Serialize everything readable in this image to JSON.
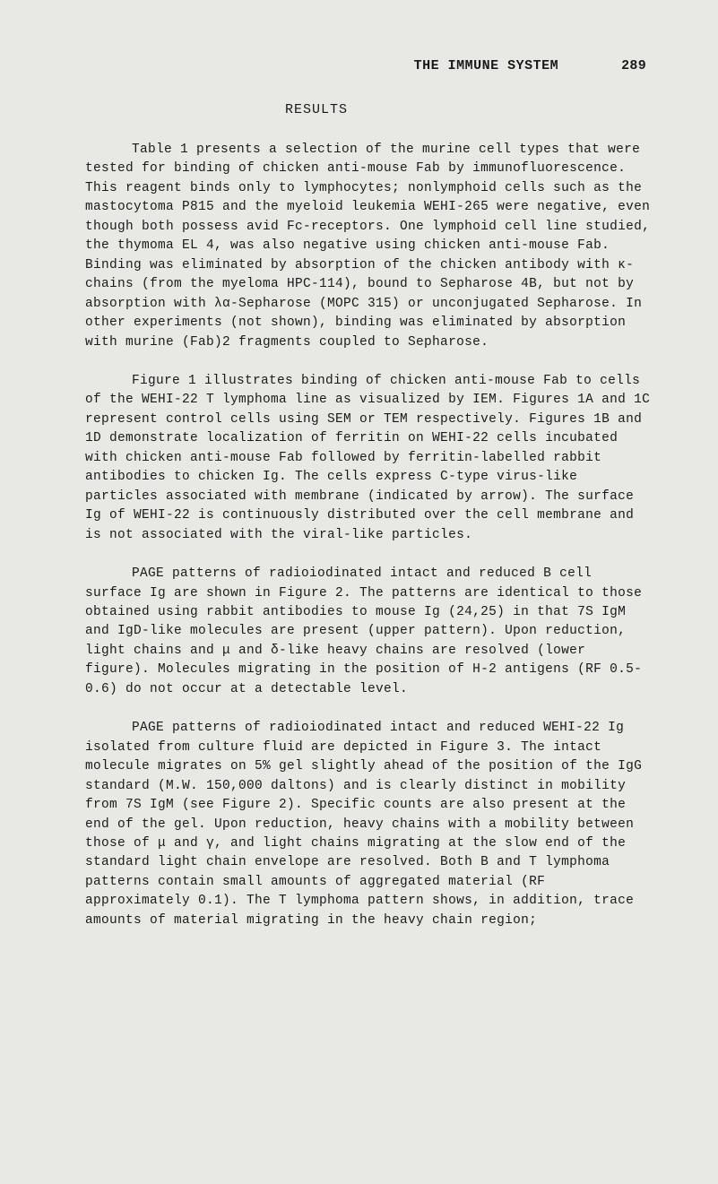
{
  "header": {
    "title": "THE IMMUNE SYSTEM",
    "page_number": "289"
  },
  "section_heading": "RESULTS",
  "paragraphs": [
    "Table 1 presents a selection of the murine cell types that were tested for binding of chicken anti-mouse Fab by immunofluorescence. This reagent binds only to lymphocytes; nonlymphoid cells such as the mastocytoma P815 and the myeloid leukemia WEHI-265 were negative, even though both possess avid Fc-receptors. One lymphoid cell line studied, the thymoma EL 4, was also negative using chicken anti-mouse Fab. Binding was eliminated by absorption of the chicken antibody with κ-chains (from the myeloma HPC-114), bound to Sepharose 4B, but not by absorption with λα-Sepharose (MOPC 315) or unconjugated Sepharose. In other experiments (not shown), binding was eliminated by absorption with murine (Fab)2 fragments coupled to Sepharose.",
    "Figure 1 illustrates binding of chicken anti-mouse Fab to cells of the WEHI-22 T lymphoma line as visualized by IEM. Figures 1A and 1C represent control cells using SEM or TEM respectively. Figures 1B and 1D demonstrate localization of ferritin on WEHI-22 cells incubated with chicken anti-mouse Fab followed by ferritin-labelled rabbit antibodies to chicken Ig. The cells express C-type virus-like particles associated with membrane (indicated by arrow). The surface Ig of WEHI-22 is continuously distributed over the cell membrane and is not associated with the viral-like particles.",
    "PAGE patterns of radioiodinated intact and reduced B cell surface Ig are shown in Figure 2. The patterns are identical to those obtained using rabbit antibodies to mouse Ig (24,25) in that 7S IgM and IgD-like molecules are present (upper pattern). Upon reduction, light chains and μ and δ-like heavy chains are resolved (lower figure). Molecules migrating in the position of H-2 antigens (RF 0.5-0.6) do not occur at a detectable level.",
    "PAGE patterns of radioiodinated intact and reduced WEHI-22 Ig isolated from culture fluid are depicted in Figure 3. The intact molecule migrates on 5% gel slightly ahead of the position of the IgG standard (M.W. 150,000 daltons) and is clearly distinct in mobility from 7S IgM (see Figure 2). Specific counts are also present at the end of the gel. Upon reduction, heavy chains with a mobility between those of μ and γ, and light chains migrating at the slow end of the standard light chain envelope are resolved. Both B and T lymphoma patterns contain small amounts of aggregated material (RF approximately 0.1). The T lymphoma pattern shows, in addition, trace amounts of material migrating in the heavy chain region;"
  ],
  "styles": {
    "background_color": "#e8e9e4",
    "text_color": "#1a1a1a",
    "font_family": "Courier New",
    "body_font_size": 14.5,
    "header_font_size": 15,
    "line_height": 1.48,
    "text_indent": 52
  }
}
